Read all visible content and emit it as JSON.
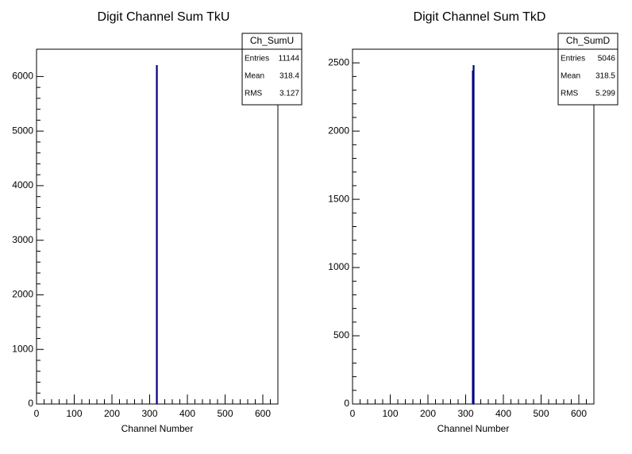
{
  "chart_data": [
    {
      "type": "histogram",
      "title": "Digit Channel Sum TkU",
      "xlabel": "Channel Number",
      "bins": [
        318,
        320
      ],
      "values": [
        6200
      ],
      "color": "#000080",
      "xlim": [
        0,
        640
      ],
      "ylim": [
        0,
        6500
      ],
      "xticks": [
        0,
        100,
        200,
        300,
        400,
        500,
        600
      ],
      "yticks": [
        0,
        1000,
        2000,
        3000,
        4000,
        5000,
        6000
      ],
      "stats": {
        "title": "Ch_SumU",
        "rows": [
          [
            "Entries",
            "11144"
          ],
          [
            "Mean",
            "318.4"
          ],
          [
            "RMS",
            "3.127"
          ]
        ]
      }
    },
    {
      "type": "histogram",
      "title": "Digit Channel Sum TkD",
      "xlabel": "Channel Number",
      "bins": [
        318,
        320,
        322
      ],
      "values": [
        2440,
        2480
      ],
      "color": "#000080",
      "xlim": [
        0,
        640
      ],
      "ylim": [
        0,
        2600
      ],
      "xticks": [
        0,
        100,
        200,
        300,
        400,
        500,
        600
      ],
      "yticks": [
        0,
        500,
        1000,
        1500,
        2000,
        2500
      ],
      "stats": {
        "title": "Ch_SumD",
        "rows": [
          [
            "Entries",
            "5046"
          ],
          [
            "Mean",
            "318.5"
          ],
          [
            "RMS",
            "5.299"
          ]
        ]
      }
    }
  ]
}
